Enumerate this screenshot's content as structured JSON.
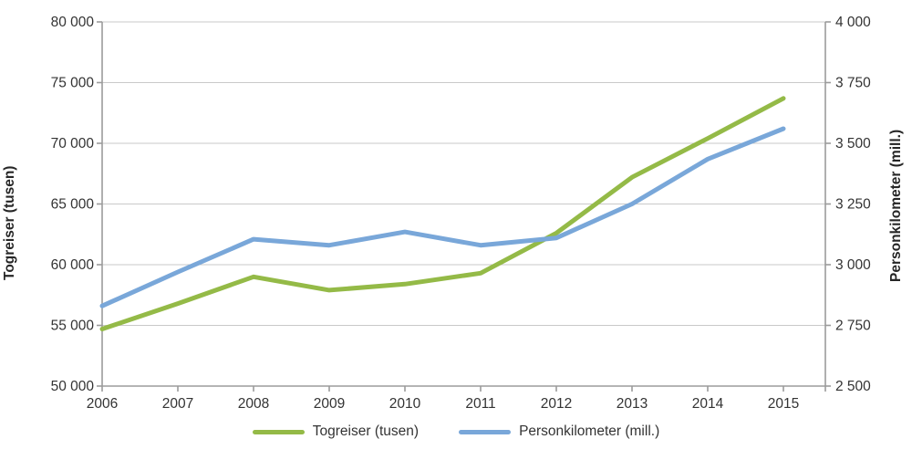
{
  "chart_data": {
    "type": "line",
    "x": [
      "2006",
      "2007",
      "2008",
      "2009",
      "2010",
      "2011",
      "2012",
      "2013",
      "2014",
      "2015"
    ],
    "series": [
      {
        "name": "Togreiser (tusen)",
        "axis": "left",
        "color": "#94ba47",
        "values": [
          54700,
          56800,
          59000,
          57900,
          58400,
          59300,
          62600,
          67200,
          70400,
          73700
        ]
      },
      {
        "name": "Personkilometer (mill.)",
        "axis": "right",
        "color": "#79a7d9",
        "values": [
          2830,
          2970,
          3105,
          3080,
          3135,
          3080,
          3110,
          3250,
          3435,
          3560
        ]
      }
    ],
    "left_axis": {
      "label": "Togreiser (tusen)",
      "min": 50000,
      "max": 80000,
      "step": 5000,
      "tick_labels": [
        "80 000",
        "75 000",
        "70 000",
        "65 000",
        "60 000",
        "55 000",
        "50 000"
      ]
    },
    "right_axis": {
      "label": "Personkilometer (mill.)",
      "min": 2500,
      "max": 4000,
      "step": 250,
      "tick_labels": [
        "4 000",
        "3 750",
        "3 500",
        "3 250",
        "3 000",
        "2 750",
        "2 500"
      ]
    },
    "legend": [
      {
        "label": "Togreiser (tusen)",
        "color": "#94ba47"
      },
      {
        "label": "Personkilometer (mill.)",
        "color": "#79a7d9"
      }
    ],
    "grid": "horizontal",
    "legend_position": "bottom",
    "title": ""
  }
}
